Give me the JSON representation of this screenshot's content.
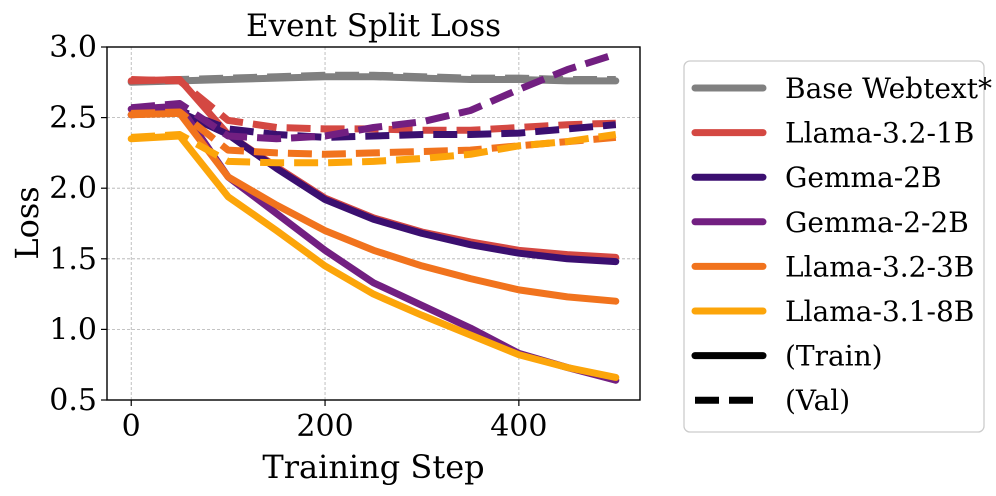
{
  "chart_data": {
    "type": "line",
    "title": "Event Split Loss",
    "xlabel": "Training Step",
    "ylabel": "Loss",
    "xlim": [
      -25,
      525
    ],
    "ylim": [
      0.5,
      3.0
    ],
    "xticks": [
      0,
      200,
      400
    ],
    "yticks": [
      0.5,
      1.0,
      1.5,
      2.0,
      2.5,
      3.0
    ],
    "xtick_labels": [
      "0",
      "200",
      "400"
    ],
    "ytick_labels": [
      "0.5",
      "1.0",
      "1.5",
      "2.0",
      "2.5",
      "3.0"
    ],
    "grid": true,
    "legend_placement": "outside-right",
    "x": [
      0,
      50,
      100,
      150,
      200,
      250,
      300,
      350,
      400,
      450,
      500
    ],
    "series": [
      {
        "name": "Base Webtext*",
        "color": "#808080",
        "style": "solid",
        "values": [
          2.75,
          2.76,
          2.77,
          2.78,
          2.79,
          2.79,
          2.78,
          2.77,
          2.77,
          2.76,
          2.76
        ]
      },
      {
        "name": "Base Webtext*",
        "color": "#808080",
        "style": "dashed",
        "values": [
          2.76,
          2.77,
          2.78,
          2.79,
          2.8,
          2.8,
          2.79,
          2.78,
          2.78,
          2.77,
          2.77
        ]
      },
      {
        "name": "Llama-3.2-1B",
        "color": "#d44842",
        "style": "solid",
        "values": [
          2.76,
          2.77,
          2.38,
          2.15,
          1.93,
          1.79,
          1.69,
          1.62,
          1.56,
          1.53,
          1.51
        ]
      },
      {
        "name": "Llama-3.2-1B",
        "color": "#d44842",
        "style": "dashed",
        "values": [
          2.77,
          2.76,
          2.48,
          2.43,
          2.42,
          2.42,
          2.41,
          2.41,
          2.43,
          2.45,
          2.46
        ]
      },
      {
        "name": "Gemma-2B",
        "color": "#3b0f70",
        "style": "solid",
        "values": [
          2.52,
          2.54,
          2.38,
          2.14,
          1.92,
          1.78,
          1.68,
          1.6,
          1.54,
          1.5,
          1.48
        ]
      },
      {
        "name": "Gemma-2B",
        "color": "#3b0f70",
        "style": "dashed",
        "values": [
          2.53,
          2.55,
          2.42,
          2.38,
          2.36,
          2.37,
          2.38,
          2.38,
          2.39,
          2.42,
          2.45
        ]
      },
      {
        "name": "Gemma-2-2B",
        "color": "#721f81",
        "style": "solid",
        "values": [
          2.56,
          2.58,
          2.08,
          1.82,
          1.56,
          1.33,
          1.17,
          1.01,
          0.83,
          0.73,
          0.64
        ]
      },
      {
        "name": "Gemma-2-2B",
        "color": "#721f81",
        "style": "dashed",
        "values": [
          2.57,
          2.6,
          2.37,
          2.35,
          2.37,
          2.43,
          2.47,
          2.55,
          2.7,
          2.84,
          2.95
        ]
      },
      {
        "name": "Llama-3.2-3B",
        "color": "#f1731d",
        "style": "solid",
        "values": [
          2.52,
          2.53,
          2.08,
          1.88,
          1.7,
          1.56,
          1.45,
          1.36,
          1.28,
          1.23,
          1.2
        ]
      },
      {
        "name": "Llama-3.2-3B",
        "color": "#f1731d",
        "style": "dashed",
        "values": [
          2.53,
          2.54,
          2.27,
          2.25,
          2.24,
          2.25,
          2.26,
          2.27,
          2.3,
          2.33,
          2.36
        ]
      },
      {
        "name": "Llama-3.1-8B",
        "color": "#fca50a",
        "style": "solid",
        "values": [
          2.35,
          2.37,
          1.94,
          1.7,
          1.45,
          1.25,
          1.1,
          0.96,
          0.82,
          0.73,
          0.66
        ]
      },
      {
        "name": "Llama-3.1-8B",
        "color": "#fca50a",
        "style": "dashed",
        "values": [
          2.36,
          2.38,
          2.19,
          2.18,
          2.18,
          2.19,
          2.21,
          2.24,
          2.3,
          2.33,
          2.38
        ]
      }
    ],
    "legend": [
      {
        "label": "Base Webtext*",
        "color": "#808080",
        "style": "solid"
      },
      {
        "label": "Llama-3.2-1B",
        "color": "#d44842",
        "style": "solid"
      },
      {
        "label": "Gemma-2B",
        "color": "#3b0f70",
        "style": "solid"
      },
      {
        "label": "Gemma-2-2B",
        "color": "#721f81",
        "style": "solid"
      },
      {
        "label": "Llama-3.2-3B",
        "color": "#f1731d",
        "style": "solid"
      },
      {
        "label": "Llama-3.1-8B",
        "color": "#fca50a",
        "style": "solid"
      },
      {
        "label": "(Train)",
        "color": "#000000",
        "style": "solid"
      },
      {
        "label": "(Val)",
        "color": "#000000",
        "style": "dashed"
      }
    ]
  }
}
